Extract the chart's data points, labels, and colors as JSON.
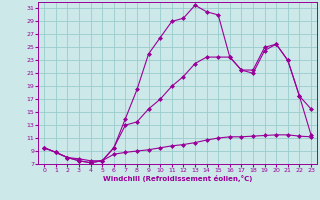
{
  "xlabel": "Windchill (Refroidissement éolien,°C)",
  "bg_color": "#cce8e8",
  "line_color": "#990099",
  "grid_color": "#99cccc",
  "line1_x": [
    0,
    1,
    2,
    3,
    4,
    5,
    6,
    7,
    8,
    9,
    10,
    11,
    12,
    13,
    14,
    15,
    16,
    17,
    18,
    19,
    20,
    21,
    22,
    23
  ],
  "line1_y": [
    9.5,
    8.8,
    8.0,
    7.5,
    7.2,
    7.5,
    9.5,
    14.0,
    18.5,
    24.0,
    26.5,
    29.0,
    29.5,
    31.5,
    30.5,
    30.0,
    23.5,
    21.5,
    21.0,
    24.5,
    25.5,
    23.0,
    17.5,
    15.5
  ],
  "line2_x": [
    0,
    1,
    2,
    3,
    4,
    5,
    6,
    7,
    8,
    9,
    10,
    11,
    12,
    13,
    14,
    15,
    16,
    17,
    18,
    19,
    20,
    21,
    22,
    23
  ],
  "line2_y": [
    9.5,
    8.8,
    8.0,
    7.5,
    7.2,
    7.5,
    9.5,
    13.0,
    13.5,
    15.5,
    17.0,
    19.0,
    20.5,
    22.5,
    23.5,
    23.5,
    23.5,
    21.5,
    21.5,
    25.0,
    25.5,
    23.0,
    17.5,
    11.5
  ],
  "line3_x": [
    0,
    1,
    2,
    3,
    4,
    5,
    6,
    7,
    8,
    9,
    10,
    11,
    12,
    13,
    14,
    15,
    16,
    17,
    18,
    19,
    20,
    21,
    22,
    23
  ],
  "line3_y": [
    9.5,
    8.8,
    8.0,
    7.8,
    7.5,
    7.5,
    8.5,
    8.8,
    9.0,
    9.2,
    9.5,
    9.8,
    10.0,
    10.3,
    10.7,
    11.0,
    11.2,
    11.2,
    11.3,
    11.4,
    11.5,
    11.5,
    11.3,
    11.2
  ],
  "ylim": [
    7,
    32
  ],
  "xlim": [
    -0.5,
    23.5
  ],
  "yticks": [
    7,
    9,
    11,
    13,
    15,
    17,
    19,
    21,
    23,
    25,
    27,
    29,
    31
  ],
  "xticks": [
    0,
    1,
    2,
    3,
    4,
    5,
    6,
    7,
    8,
    9,
    10,
    11,
    12,
    13,
    14,
    15,
    16,
    17,
    18,
    19,
    20,
    21,
    22,
    23
  ]
}
